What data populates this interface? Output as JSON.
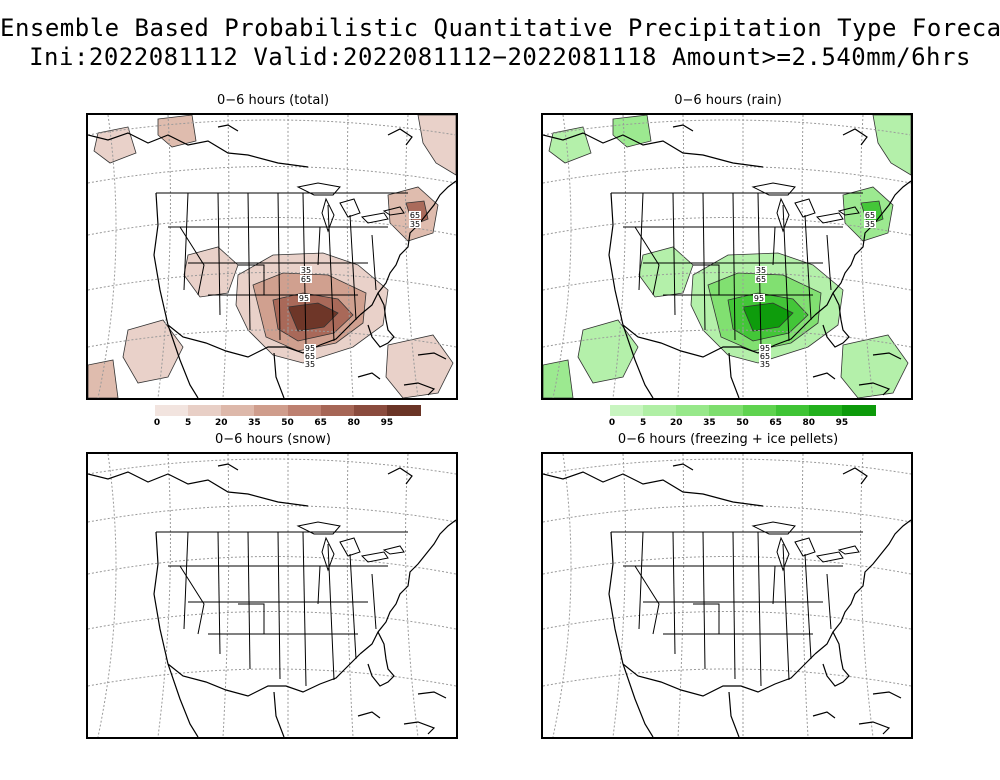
{
  "title": {
    "line1": "Ensemble Based Probabilistic Quantitative Precipitation Type Forecast",
    "line2": "Ini:2022081112 Valid:2022081112−2022081118 Amount>=2.540mm/6hrs"
  },
  "panels": [
    {
      "id": "total",
      "title": "0−6 hours (total)"
    },
    {
      "id": "rain",
      "title": "0−6 hours (rain)"
    },
    {
      "id": "snow",
      "title": "0−6 hours (snow)"
    },
    {
      "id": "frz",
      "title": "0−6 hours (freezing + ice pellets)"
    }
  ],
  "colorbars": {
    "total": {
      "ticks": [
        "0",
        "5",
        "20",
        "35",
        "50",
        "65",
        "80",
        "95"
      ],
      "colors": [
        "#f2e4df",
        "#e8cfc6",
        "#ddb8aa",
        "#cf9d8c",
        "#bd8070",
        "#a66656",
        "#8a4b3d",
        "#6a3426"
      ]
    },
    "rain": {
      "ticks": [
        "0",
        "5",
        "20",
        "35",
        "50",
        "65",
        "80",
        "95"
      ],
      "colors": [
        "#c8f5c0",
        "#b0efa5",
        "#97e88a",
        "#7ede6e",
        "#5fd34f",
        "#3fc435",
        "#22b01d",
        "#0c9a0a"
      ]
    }
  },
  "map_labels": {
    "total_labels": [
      "65",
      "35",
      "35",
      "65",
      "95",
      "95",
      "65",
      "35"
    ],
    "rain_labels": [
      "65",
      "35",
      "35",
      "65",
      "95",
      "95",
      "65",
      "35"
    ]
  }
}
